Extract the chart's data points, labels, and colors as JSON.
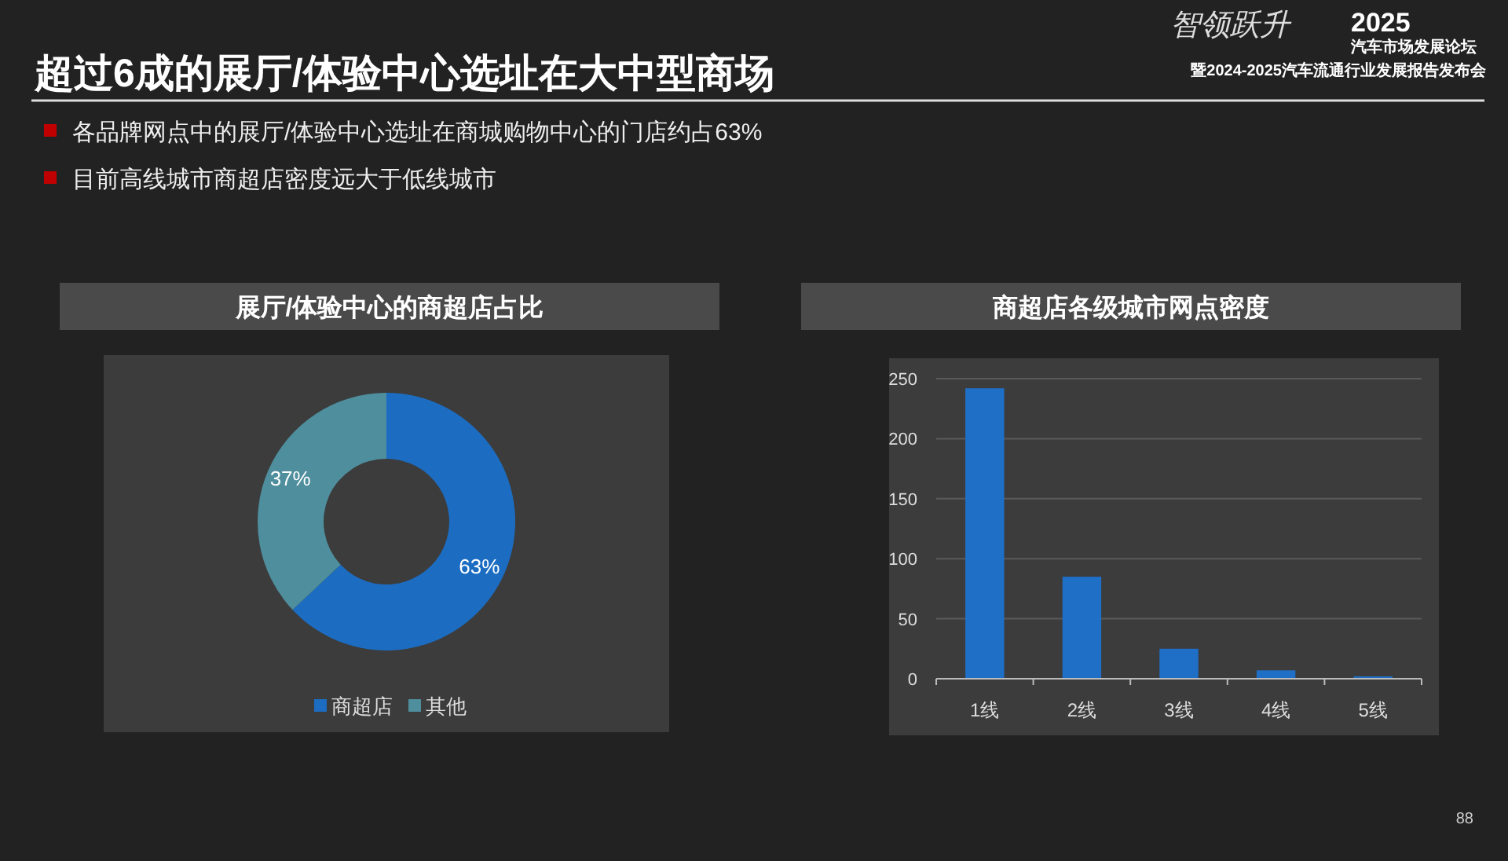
{
  "chart_data": [
    {
      "type": "other",
      "title": "超过6成的展厅/体验中心选址在大中型商场",
      "annotations": [
        "各品牌网点中的展厅/体验中心选址在商城购物中心的门店约占63%",
        "目前高线城市商超店密度远大于低线城市",
        "智领跃升",
        "2025",
        "汽车市场发展论坛",
        "暨2024-2025汽车流通行业发展报告发布会",
        "88"
      ]
    },
    {
      "type": "donut",
      "title": "展厅/体验中心的商超店占比",
      "categories": [
        "商超店",
        "其他"
      ],
      "values": [
        63,
        37
      ],
      "value_labels": [
        "63%",
        "37%"
      ],
      "colors": [
        "#1c6dc2",
        "#4e8e9d"
      ],
      "legend": "bottom"
    },
    {
      "type": "bar",
      "title": "商超店各级城市网点密度",
      "categories": [
        "1线",
        "2线",
        "3线",
        "4线",
        "5线"
      ],
      "values": [
        242,
        85,
        25,
        7,
        2
      ],
      "color": "#1f6fc7",
      "ylim": [
        0,
        250
      ],
      "yticks": [
        0,
        50,
        100,
        150,
        200,
        250
      ],
      "grid": "y"
    }
  ]
}
